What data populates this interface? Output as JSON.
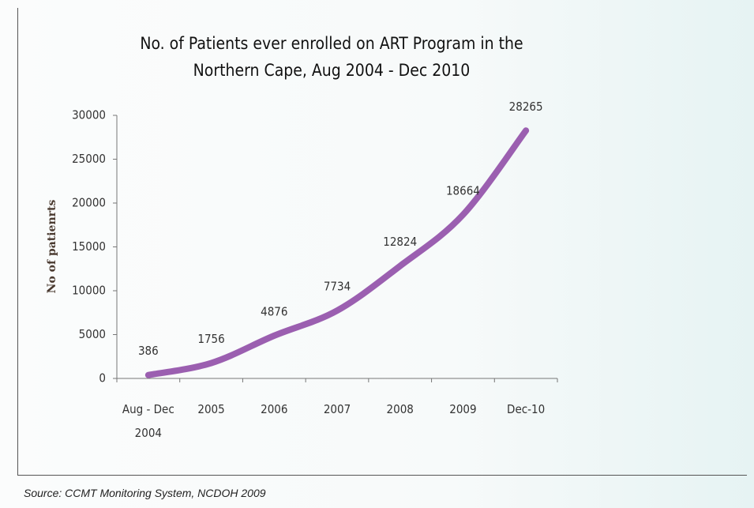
{
  "chart_data": {
    "type": "line",
    "title": "No. of Patients ever enrolled on ART Program in the Northern Cape,  Aug 2004 - Dec 2010",
    "y_label": "No of patienrts",
    "categories": [
      "Aug - Dec 2004",
      "2005",
      "2006",
      "2007",
      "2008",
      "2009",
      "Dec-10"
    ],
    "values": [
      386,
      1756,
      4876,
      7734,
      12824,
      18664,
      28265
    ],
    "color": "#9b5fb0",
    "ylim": [
      0,
      30000
    ],
    "yticks": [
      0,
      5000,
      10000,
      15000,
      20000,
      25000,
      30000
    ],
    "grid": false
  },
  "source": "Source: CCMT Monitoring System, NCDOH 2009"
}
